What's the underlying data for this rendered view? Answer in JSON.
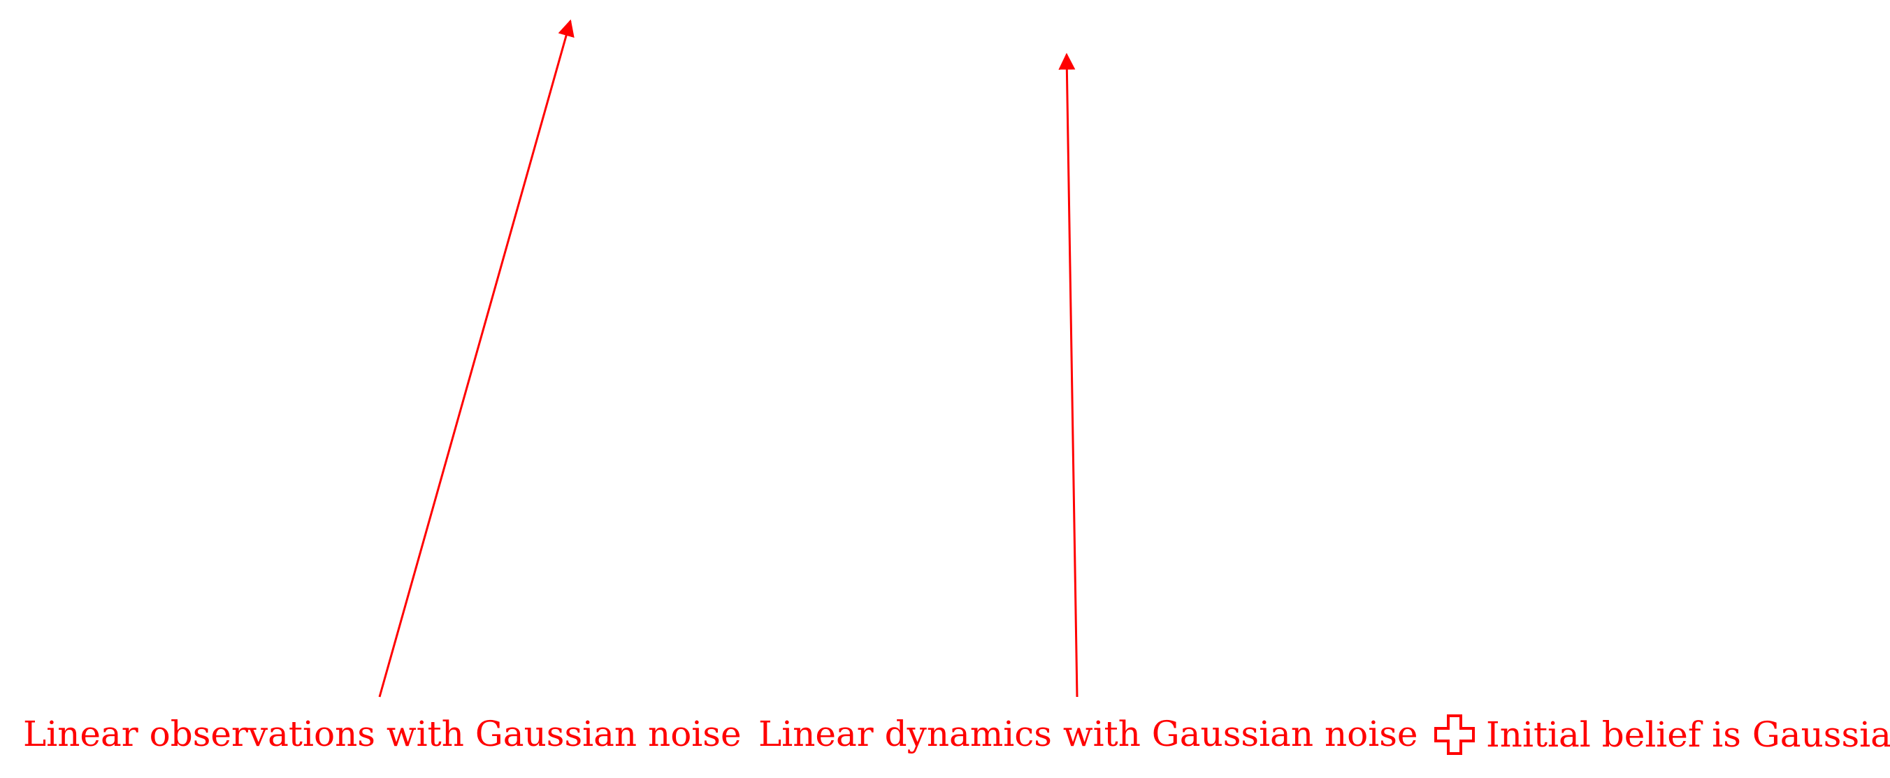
{
  "colors": {
    "accent": "#ff0000",
    "background": "#ffffff"
  },
  "annotations": [
    {
      "text": "Linear observations with Gaussian noise",
      "marker": "arrow-up"
    },
    {
      "text": "Linear dynamics with Gaussian noise",
      "marker": "arrow-up"
    },
    {
      "text": "Initial belief is Gaussian",
      "marker": "cross-outline-icon"
    }
  ]
}
